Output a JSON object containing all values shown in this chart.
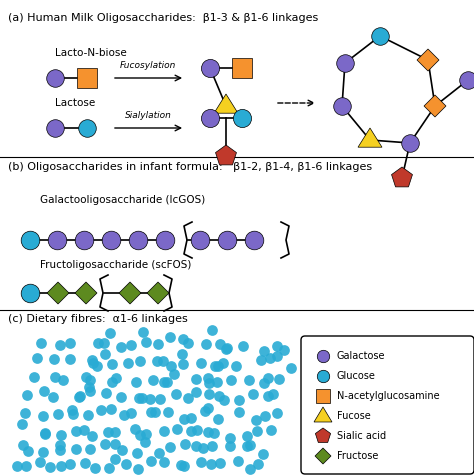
{
  "title_a": "(a) Human Milk Oligosaccharides:  β1-3 & β1-6 linkages",
  "title_b": "(b) Oligosaccharides in infant formula:   β1-2, β1-4, β1-6 linkages",
  "title_c": "(c) Dietary fibres:  α1-6 linkages",
  "label_lacto": "Lacto-N-biose",
  "label_lactose": "Lactose",
  "label_lcGOS": "Galactooligosaccharide (lcGOS)",
  "label_scFOS": "Fructoligosaccharide (scFOS)",
  "label_fucosylation": "Fucosylation",
  "label_sialylation": "Sialylation",
  "color_galactose": "#7B68C8",
  "color_glucose": "#29ABD4",
  "color_nacetyl": "#F5922E",
  "color_fucose": "#F5D020",
  "color_sialic": "#C0392B",
  "color_fructose": "#5D8A1F",
  "bg_color": "#FFFFFF",
  "legend_items": [
    {
      "label": "Galactose",
      "color": "#7B68C8",
      "marker": "o"
    },
    {
      "label": "Glucose",
      "color": "#29ABD4",
      "marker": "o"
    },
    {
      "label": "N-acetylglucosamine",
      "color": "#F5922E",
      "marker": "s"
    },
    {
      "label": "Fucose",
      "color": "#F5D020",
      "marker": "^"
    },
    {
      "label": "Sialic acid",
      "color": "#C0392B",
      "marker": "p"
    },
    {
      "label": "Fructose",
      "color": "#5D8A1F",
      "marker": "D"
    }
  ]
}
